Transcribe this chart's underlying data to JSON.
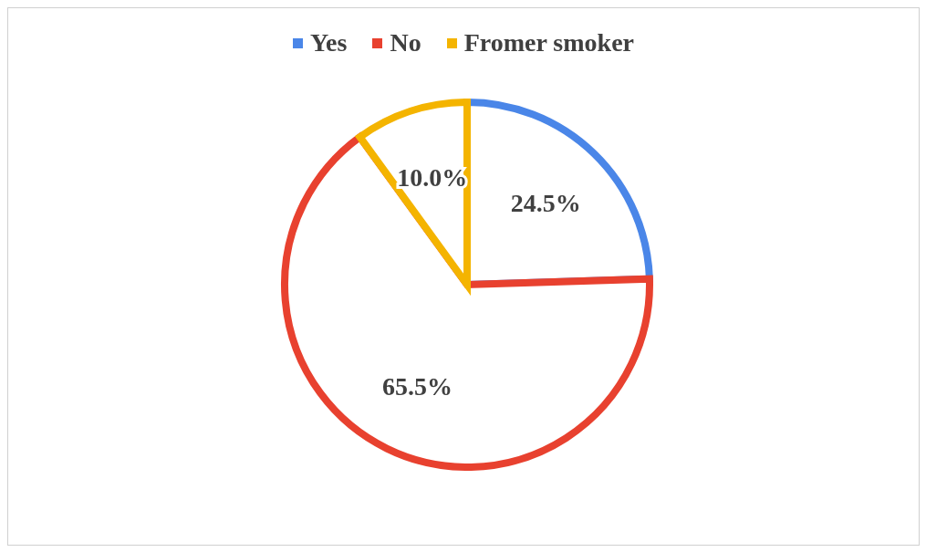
{
  "chart_data": {
    "type": "pie",
    "categories": [
      "Yes",
      "No",
      "Fromer smoker"
    ],
    "values": [
      24.5,
      65.5,
      10.0
    ],
    "colors": [
      "#4a86e8",
      "#e8412f",
      "#f4b400"
    ],
    "value_labels": [
      "24.5%",
      "65.5%",
      "10.0%"
    ],
    "legend": "top"
  }
}
